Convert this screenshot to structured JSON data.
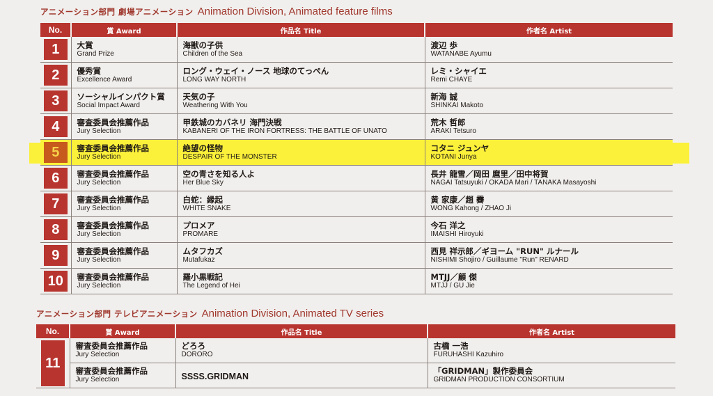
{
  "section1": {
    "title_jp": "アニメーション部門 劇場アニメーション",
    "title_en": "Animation Division, Animated feature films"
  },
  "section2": {
    "title_jp": "アニメーション部門 テレビアニメーション",
    "title_en": "Animation Division, Animated TV series"
  },
  "headers": {
    "no": "No.",
    "award": "賞 Award",
    "title": "作品名 Title",
    "artist": "作者名 Artist"
  },
  "films": [
    {
      "no": "1",
      "award_jp": "大賞",
      "award_en": "Grand Prize",
      "title_jp": "海獣の子供",
      "title_en": "Children of the Sea",
      "artist_jp": "渡辺 歩",
      "artist_en": "WATANABE Ayumu"
    },
    {
      "no": "2",
      "award_jp": "優秀賞",
      "award_en": "Excellence Award",
      "title_jp": "ロング・ウェイ・ノース 地球のてっぺん",
      "title_en": "LONG WAY NORTH",
      "artist_jp": "レミ・シャイエ",
      "artist_en": "Remi CHAYE"
    },
    {
      "no": "3",
      "award_jp": "ソーシャルインパクト賞",
      "award_en": "Social Impact Award",
      "title_jp": "天気の子",
      "title_en": "Weathering With You",
      "artist_jp": "新海 誠",
      "artist_en": "SHINKAI Makoto"
    },
    {
      "no": "4",
      "award_jp": "審査委員会推薦作品",
      "award_en": "Jury Selection",
      "title_jp": "甲鉄城のカバネリ 海門決戦",
      "title_en": "KABANERI OF THE IRON FORTRESS: THE BATTLE OF UNATO",
      "artist_jp": "荒木 哲郎",
      "artist_en": "ARAKI Tetsuro"
    },
    {
      "no": "5",
      "award_jp": "審査委員会推薦作品",
      "award_en": "Jury Selection",
      "title_jp": "絶望の怪物",
      "title_en": "DESPAIR OF THE MONSTER",
      "artist_jp": "コタニ ジュンヤ",
      "artist_en": "KOTANI Junya"
    },
    {
      "no": "6",
      "award_jp": "審査委員会推薦作品",
      "award_en": "Jury Selection",
      "title_jp": "空の青さを知る人よ",
      "title_en": "Her Blue Sky",
      "artist_jp": "長井 龍雪／岡田 麿里／田中将賀",
      "artist_en": "NAGAI Tatsuyuki / OKADA Mari / TANAKA Masayoshi"
    },
    {
      "no": "7",
      "award_jp": "審査委員会推薦作品",
      "award_en": "Jury Selection",
      "title_jp": "白蛇：縁起",
      "title_en": "WHITE SNAKE",
      "artist_jp": "黄 家康／趙 霽",
      "artist_en": "WONG Kahong / ZHAO Ji"
    },
    {
      "no": "8",
      "award_jp": "審査委員会推薦作品",
      "award_en": "Jury Selection",
      "title_jp": "プロメア",
      "title_en": "PROMARE",
      "artist_jp": "今石 洋之",
      "artist_en": "IMAISHI Hiroyuki"
    },
    {
      "no": "9",
      "award_jp": "審査委員会推薦作品",
      "award_en": "Jury Selection",
      "title_jp": "ムタフカズ",
      "title_en": "Mutafukaz",
      "artist_jp": "西見 祥示郎／ギヨーム \"RUN\" ルナール",
      "artist_en": "NISHIMI Shojiro / Guillaume \"Run\" RENARD"
    },
    {
      "no": "10",
      "award_jp": "審査委員会推薦作品",
      "award_en": "Jury Selection",
      "title_jp": "羅小黒戦記",
      "title_en": "The Legend of Hei",
      "artist_jp": "MTJJ／顧 傑",
      "artist_en": "MTJJ / GU Jie"
    }
  ],
  "tv": {
    "no": "11",
    "rows": [
      {
        "award_jp": "審査委員会推薦作品",
        "award_en": "Jury Selection",
        "title_jp": "どろろ",
        "title_en": "DORORO",
        "artist_jp": "古橋 一浩",
        "artist_en": "FURUHASHI Kazuhiro"
      },
      {
        "award_jp": "審査委員会推薦作品",
        "award_en": "Jury Selection",
        "title": "SSSS.GRIDMAN",
        "artist_jp": "「GRIDMAN」製作委員会",
        "artist_en": "GRIDMAN PRODUCTION CONSORTIUM"
      }
    ]
  },
  "colors": {
    "header_red": "#b8342f",
    "title_red": "#a0382e",
    "highlight": "#fbf03a"
  }
}
